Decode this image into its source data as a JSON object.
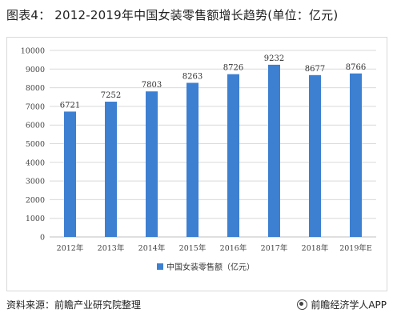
{
  "header": {
    "title": "图表4： 2012-2019年中国女装零售额增长趋势(单位：亿元)"
  },
  "footer": {
    "source": "资料来源：前瞻产业研究院整理",
    "brand": "前瞻经济学人APP"
  },
  "colors": {
    "bar": "#3d7fd1",
    "grid": "#d9d9d9",
    "axis": "#bfbfbf"
  },
  "chart_data": {
    "type": "bar",
    "categories": [
      "2012年",
      "2013年",
      "2014年",
      "2015年",
      "2016年",
      "2017年",
      "2018年",
      "2019年E"
    ],
    "series": [
      {
        "name": "中国女装零售额（亿元）",
        "values": [
          6721,
          7252,
          7803,
          8263,
          8726,
          9232,
          8677,
          8766
        ]
      }
    ],
    "ylim": [
      0,
      10000
    ],
    "yticks": [
      0,
      1000,
      2000,
      3000,
      4000,
      5000,
      6000,
      7000,
      8000,
      9000,
      10000
    ],
    "grid": true,
    "legend_position": "bottom"
  }
}
